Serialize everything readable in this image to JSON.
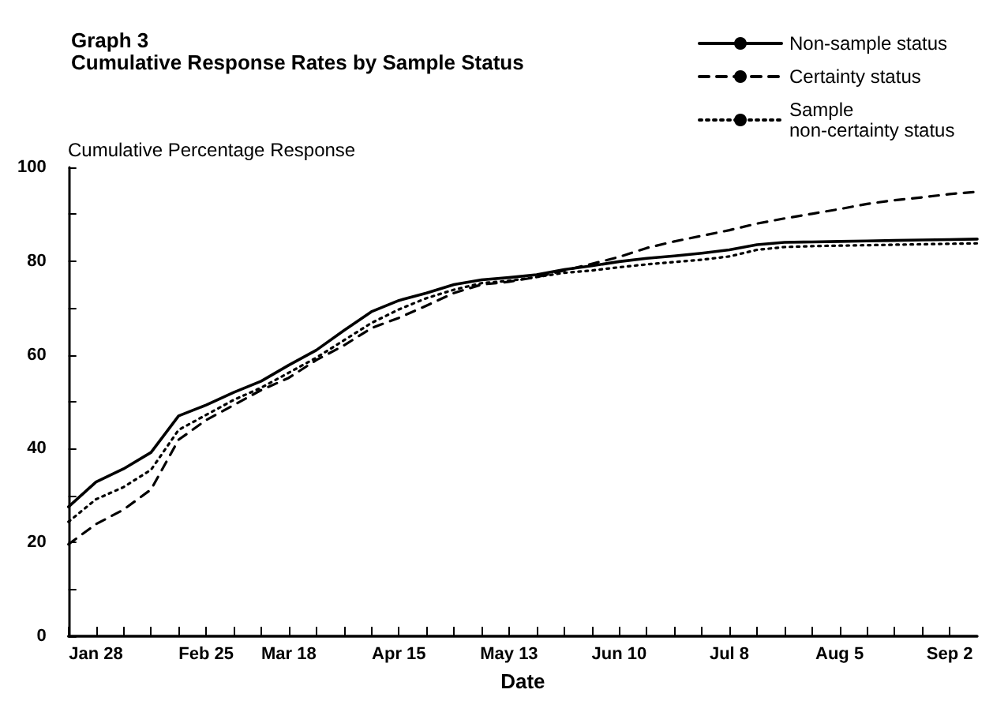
{
  "chart_data": {
    "type": "line",
    "title": "Graph 3",
    "subtitle": "Cumulative Response Rates by Sample Status",
    "ylabel": "Cumulative Percentage Response",
    "xlabel": "Date",
    "x": [
      "--01-21",
      "--01-28",
      "--02-04",
      "--02-11",
      "--02-18",
      "--02-25",
      "--03-04",
      "--03-11",
      "--03-18",
      "--03-25",
      "--04-01",
      "--04-08",
      "--04-15",
      "--04-22",
      "--04-29",
      "--05-06",
      "--05-13",
      "--05-20",
      "--05-27",
      "--06-03",
      "--06-10",
      "--06-17",
      "--06-24",
      "--07-01",
      "--07-08",
      "--07-15",
      "--07-22",
      "--07-29",
      "--08-05",
      "--08-12",
      "--08-19",
      "--08-26",
      "--09-02",
      "--09-09"
    ],
    "series": [
      {
        "name": "Non-sample status",
        "color": "#000000",
        "line_style": "solid",
        "values": [
          27.6,
          32.9,
          35.7,
          39.2,
          47,
          49.3,
          52,
          54.4,
          57.8,
          61,
          65.2,
          69.2,
          71.6,
          73.2,
          75,
          76,
          76.5,
          77.1,
          78.2,
          79,
          79.9,
          80.6,
          81.1,
          81.7,
          82.4,
          83.5,
          84,
          84.1,
          84.2,
          84.3,
          84.4,
          84.5,
          84.6,
          84.7
        ]
      },
      {
        "name": "Certainty status",
        "color": "#000000",
        "line_style": "dashed",
        "values": [
          19.6,
          23.9,
          27,
          31.3,
          41.9,
          46.1,
          49.3,
          52.5,
          55.1,
          58.9,
          62,
          65.7,
          67.9,
          70.5,
          73.2,
          75,
          75.6,
          76.6,
          78,
          79.4,
          80.9,
          82.8,
          84.2,
          85.4,
          86.6,
          88,
          89.1,
          90.1,
          91.1,
          92.2,
          93,
          93.6,
          94.3,
          94.8
        ]
      },
      {
        "name": "Sample non-certainty status",
        "color": "#000000",
        "line_style": "dotted",
        "values": [
          24.4,
          29.2,
          31.8,
          35.5,
          44,
          47.2,
          50.4,
          53,
          56.2,
          59.4,
          63.1,
          66.8,
          69.7,
          72.1,
          73.9,
          75.3,
          75.8,
          76.6,
          77.5,
          78,
          78.7,
          79.3,
          79.8,
          80.3,
          81,
          82.4,
          83,
          83.2,
          83.3,
          83.4,
          83.5,
          83.6,
          83.7,
          83.8
        ]
      }
    ],
    "xlim": [
      "--01-21",
      "--09-09"
    ],
    "xticks": [
      {
        "value": "--01-21",
        "label": null
      },
      {
        "value": "--01-28",
        "label": "Jan 28"
      },
      {
        "value": "--02-04",
        "label": null
      },
      {
        "value": "--02-11",
        "label": null
      },
      {
        "value": "--02-18",
        "label": null
      },
      {
        "value": "--02-25",
        "label": "Feb 25"
      },
      {
        "value": "--03-04",
        "label": null
      },
      {
        "value": "--03-11",
        "label": null
      },
      {
        "value": "--03-18",
        "label": "Mar 18"
      },
      {
        "value": "--03-25",
        "label": null
      },
      {
        "value": "--04-01",
        "label": null
      },
      {
        "value": "--04-08",
        "label": null
      },
      {
        "value": "--04-15",
        "label": "Apr 15"
      },
      {
        "value": "--04-22",
        "label": null
      },
      {
        "value": "--04-29",
        "label": null
      },
      {
        "value": "--05-06",
        "label": null
      },
      {
        "value": "--05-13",
        "label": "May 13"
      },
      {
        "value": "--05-20",
        "label": null
      },
      {
        "value": "--05-27",
        "label": null
      },
      {
        "value": "--06-03",
        "label": null
      },
      {
        "value": "--06-10",
        "label": "Jun 10"
      },
      {
        "value": "--06-17",
        "label": null
      },
      {
        "value": "--06-24",
        "label": null
      },
      {
        "value": "--07-01",
        "label": null
      },
      {
        "value": "--07-08",
        "label": "Jul 8"
      },
      {
        "value": "--07-15",
        "label": null
      },
      {
        "value": "--07-22",
        "label": null
      },
      {
        "value": "--07-29",
        "label": null
      },
      {
        "value": "--08-05",
        "label": "Aug 5"
      },
      {
        "value": "--08-12",
        "label": null
      },
      {
        "value": "--08-19",
        "label": null
      },
      {
        "value": "--08-26",
        "label": null
      },
      {
        "value": "--09-02",
        "label": "Sep 2"
      }
    ],
    "ylim": [
      0,
      100
    ],
    "yticks": [
      0,
      {
        "value": 10,
        "label": null
      },
      20,
      {
        "value": 30,
        "label": null
      },
      40,
      {
        "value": 50,
        "label": null
      },
      60,
      {
        "value": 70,
        "label": null
      },
      80,
      {
        "value": 90,
        "label": null
      },
      100
    ],
    "grid": false,
    "legend": "top right",
    "marker": "none"
  }
}
